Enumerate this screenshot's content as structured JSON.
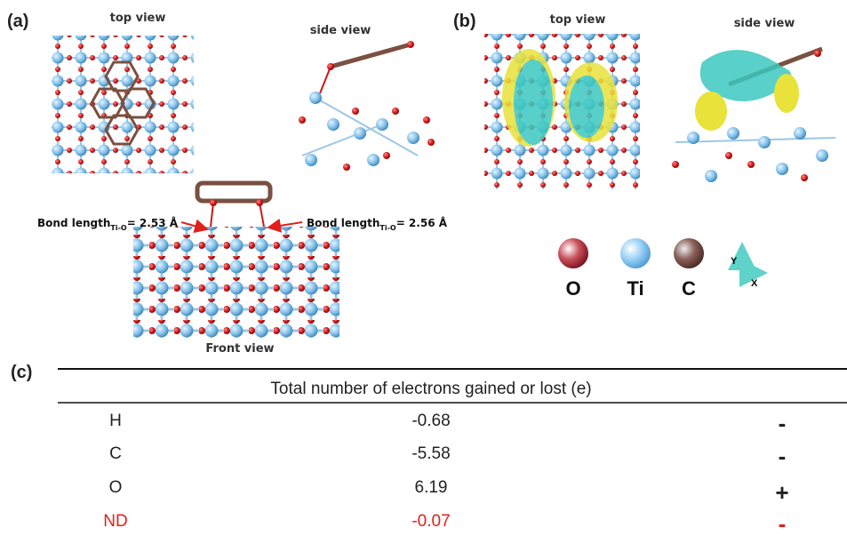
{
  "panel_a": {
    "label": "(a)",
    "top_view": "top view",
    "side_view": "side view",
    "front_view": "Front view",
    "bond_left": {
      "text": "Bond length",
      "subscript": "Ti-O",
      "value": "= 2.53 Å"
    },
    "bond_right": {
      "text": "Bond length",
      "subscript": "Ti-O",
      "value": "= 2.56 Å"
    }
  },
  "panel_b": {
    "label": "(b)",
    "top_view": "top view",
    "side_view": "side view",
    "legend": {
      "o": "O",
      "ti": "Ti",
      "c": "C",
      "axis_y": "Y",
      "axis_x": "X"
    }
  },
  "panel_c": {
    "label": "(c)",
    "table": {
      "header": "Total number of electrons gained or lost (e)",
      "rows": [
        [
          "H",
          "-0.68",
          "-"
        ],
        [
          "C",
          "-5.58",
          "-"
        ],
        [
          "O",
          "6.19",
          "+"
        ],
        [
          "ND",
          "-0.07",
          "-"
        ]
      ]
    }
  }
}
